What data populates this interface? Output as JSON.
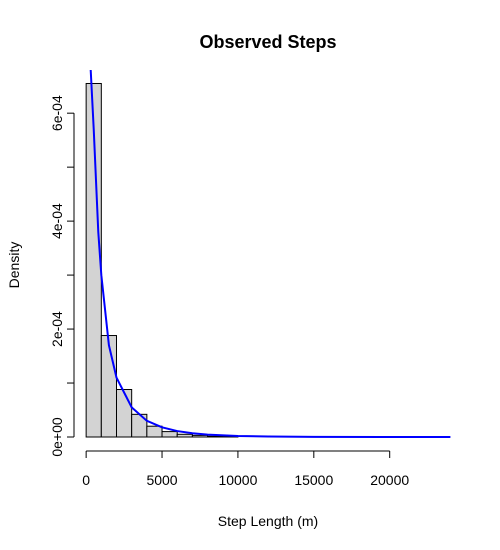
{
  "chart_data": {
    "type": "bar",
    "title": "Observed Steps",
    "xlabel": "Step Length (m)",
    "ylabel": "Density",
    "xlim": [
      -800,
      24500
    ],
    "ylim": [
      0,
      0.00068
    ],
    "x_ticks": [
      0,
      5000,
      10000,
      15000,
      20000
    ],
    "x_tick_labels": [
      "0",
      "5000",
      "10000",
      "15000",
      "20000"
    ],
    "y_ticks": [
      0,
      0.0002,
      0.0004,
      0.0006
    ],
    "y_tick_labels": [
      "0e+00",
      "2e-04",
      "4e-04",
      "6e-04"
    ],
    "y_minor_ticks": [
      0.0001,
      0.0003,
      0.0005
    ],
    "bin_width": 1000,
    "bins": [
      {
        "x0": 0,
        "x1": 1000,
        "density": 0.000655
      },
      {
        "x0": 1000,
        "x1": 2000,
        "density": 0.000188
      },
      {
        "x0": 2000,
        "x1": 3000,
        "density": 8.8e-05
      },
      {
        "x0": 3000,
        "x1": 4000,
        "density": 4.2e-05
      },
      {
        "x0": 4000,
        "x1": 5000,
        "density": 2e-05
      },
      {
        "x0": 5000,
        "x1": 6000,
        "density": 1e-05
      },
      {
        "x0": 6000,
        "x1": 7000,
        "density": 5e-06
      },
      {
        "x0": 7000,
        "x1": 8000,
        "density": 3e-06
      },
      {
        "x0": 8000,
        "x1": 9000,
        "density": 1.5e-06
      },
      {
        "x0": 9000,
        "x1": 10000,
        "density": 8e-07
      }
    ],
    "series": [
      {
        "type": "line",
        "x": [
          300,
          500,
          800,
          1000,
          1500,
          2000,
          3000,
          4000,
          5000,
          6000,
          7000,
          8000,
          10000,
          12000,
          15000,
          20000,
          24000
        ],
        "y": [
          0.00068,
          0.00057,
          0.00038,
          0.0003,
          0.00017,
          0.00011,
          5.5e-05,
          3e-05,
          1.8e-05,
          1.1e-05,
          7e-06,
          4.5e-06,
          1.8e-06,
          9e-07,
          3e-07,
          5e-08,
          0.0
        ]
      }
    ],
    "colors": {
      "bar_fill": "#d3d3d3",
      "bar_stroke": "#000000",
      "line": "#0000ff",
      "axis": "#000000"
    },
    "grid": false,
    "legend": "none"
  }
}
